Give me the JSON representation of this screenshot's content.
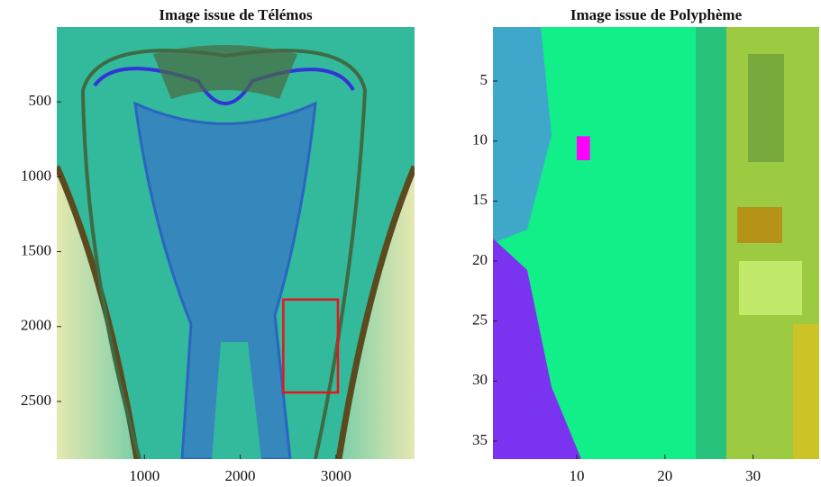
{
  "chart_data": [
    {
      "type": "image",
      "title": "Image issue de Télémos",
      "xlim": [
        85,
        3820
      ],
      "ylim": [
        2885,
        0
      ],
      "xticks": [
        1000,
        2000,
        3000
      ],
      "yticks": [
        500,
        1000,
        1500,
        2000,
        2500
      ],
      "highlight": {
        "x": [
          2450,
          3020
        ],
        "y": [
          1820,
          2440
        ],
        "color": "#e8141c"
      }
    },
    {
      "type": "image",
      "title": "Image issue de Polyphème",
      "xlim": [
        0.5,
        37.5
      ],
      "ylim": [
        36.5,
        0.5
      ],
      "xticks": [
        10,
        20,
        30
      ],
      "yticks": [
        5,
        10,
        15,
        20,
        25,
        30,
        35
      ],
      "highlight": {
        "x": [
          10,
          11.5
        ],
        "y": [
          9.6,
          11.6
        ],
        "color": "#ff00ff"
      }
    }
  ]
}
